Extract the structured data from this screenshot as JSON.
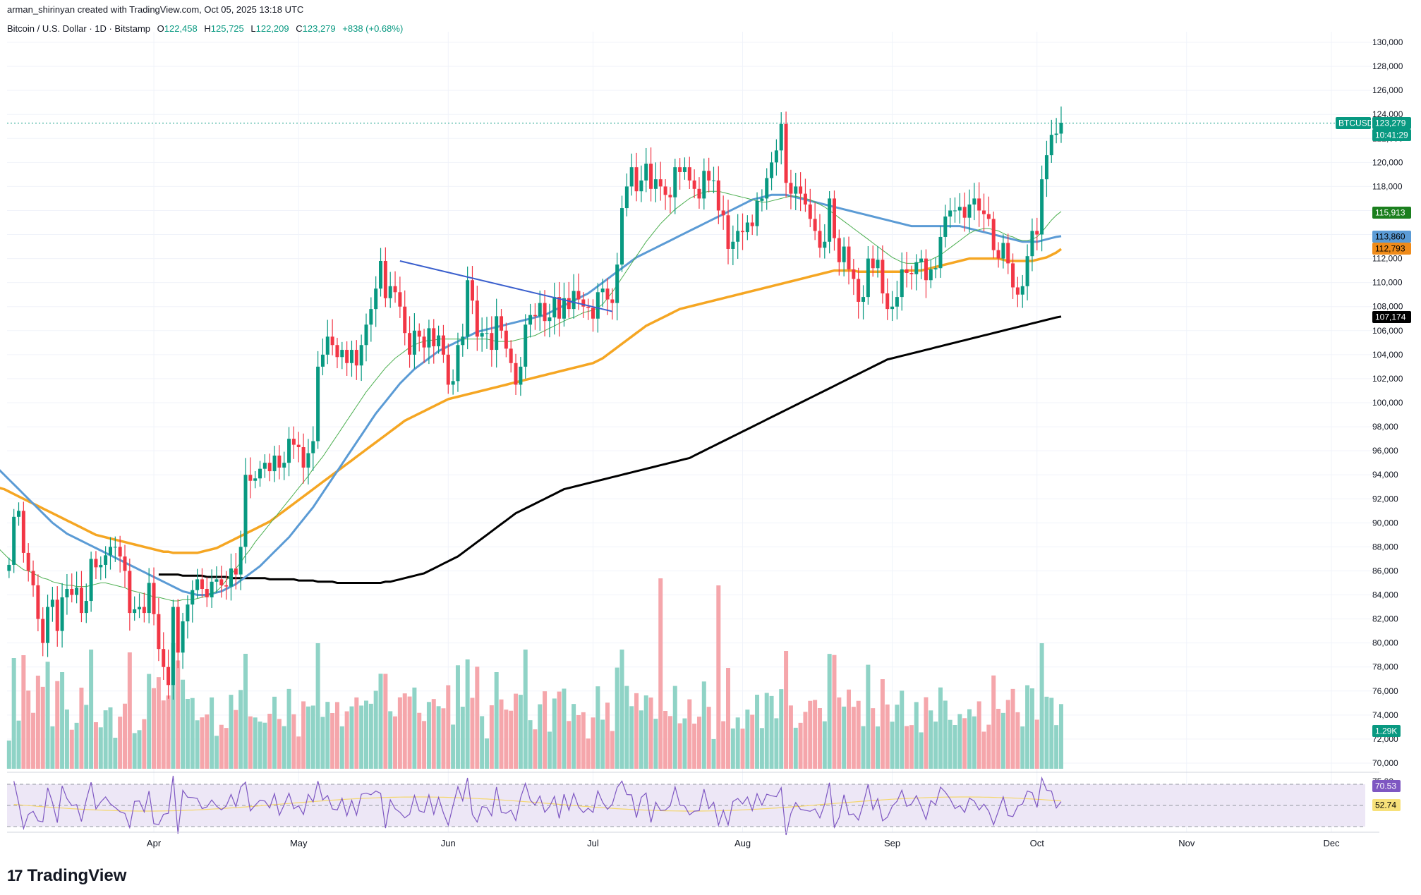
{
  "header": {
    "attribution": "arman_shirinyan created with TradingView.com, Oct 05, 2025 13:18 UTC",
    "symbol_desc": "Bitcoin / U.S. Dollar · 1D · Bitstamp",
    "open_label": "O",
    "open": "122,458",
    "high_label": "H",
    "high": "125,725",
    "low_label": "L",
    "low": "122,209",
    "close_label": "C",
    "close": "123,279",
    "change": "+838 (+0.68%)"
  },
  "brand": {
    "logo_text": "TradingView",
    "logo_icon": "tradingview-logo-icon"
  },
  "badges": {
    "symbol": "BTCUSD",
    "price": "123,279",
    "countdown": "10:41:29",
    "ma_green": "115,913",
    "ma_blue": "113,860",
    "ma_orange": "112,793",
    "ma_black": "107,174",
    "volume": "1.29K",
    "rsi": "70.53",
    "rsi_ma": "52.74",
    "rsi_top_partial": "75.00"
  },
  "colors": {
    "up": "#089981",
    "down": "#f23645",
    "ma_green": "#4caf50",
    "ma_blue": "#5b9bd5",
    "ma_orange": "#f5a623",
    "ma_black": "#000000",
    "trendline": "#3a5fcd",
    "rsi": "#7e57c2",
    "rsi_ma": "#f5d76e",
    "rsi_band": "#ede7f6"
  },
  "chart_data": {
    "type": "candlestick",
    "title": "Bitcoin / U.S. Dollar · 1D · Bitstamp",
    "xlabel": "",
    "ylabel": "",
    "ylim": [
      69000,
      131000
    ],
    "y_ticks": [
      70000,
      72000,
      74000,
      76000,
      78000,
      80000,
      82000,
      84000,
      86000,
      88000,
      90000,
      92000,
      94000,
      96000,
      98000,
      100000,
      102000,
      104000,
      106000,
      108000,
      110000,
      112000,
      114000,
      116000,
      118000,
      120000,
      122000,
      124000,
      126000,
      128000,
      130000
    ],
    "x_tick_labels": [
      "Apr",
      "May",
      "Jun",
      "Jul",
      "Aug",
      "Sep",
      "Oct",
      "Nov",
      "Dec"
    ],
    "x_range": [
      "2025-03-01",
      "2025-12-15"
    ],
    "x_tick_dates": [
      "2025-04-01",
      "2025-05-01",
      "2025-06-01",
      "2025-07-01",
      "2025-08-01",
      "2025-09-01",
      "2025-10-01",
      "2025-11-01",
      "2025-12-01"
    ],
    "start_date": "2025-03-02",
    "closes": [
      86500,
      90500,
      91000,
      87500,
      86000,
      84800,
      82000,
      80000,
      83000,
      83600,
      81000,
      83800,
      84500,
      84000,
      84600,
      82500,
      83500,
      87000,
      86300,
      86500,
      87300,
      88000,
      88000,
      87200,
      86000,
      82500,
      82800,
      83000,
      82500,
      85000,
      82400,
      79500,
      78000,
      76500,
      83000,
      79200,
      81800,
      83200,
      84400,
      85300,
      84500,
      83800,
      85100,
      85300,
      84800,
      84700,
      86200,
      85700,
      88000,
      94000,
      93500,
      93700,
      94500,
      95000,
      94300,
      95600,
      94600,
      95000,
      97000,
      96500,
      96300,
      94600,
      95800,
      96800,
      103000,
      104000,
      105500,
      104800,
      103800,
      104400,
      103300,
      104400,
      103100,
      104800,
      106500,
      107800,
      109500,
      111800,
      108700,
      109700,
      109200,
      108000,
      105800,
      104000,
      106000,
      105500,
      104600,
      106200,
      104700,
      105600,
      104000,
      101500,
      101800,
      104800,
      105500,
      110200,
      108500,
      105500,
      105800,
      105800,
      104400,
      107200,
      106000,
      104500,
      103300,
      101500,
      103000,
      106500,
      107300,
      107200,
      108300,
      106800,
      107100,
      108800,
      107000,
      108700,
      107800,
      109300,
      108600,
      108000,
      107900,
      107000,
      109200,
      109500,
      108600,
      108300,
      111500,
      116200,
      118000,
      119600,
      117600,
      118500,
      119900,
      117800,
      118600,
      118000,
      117300,
      117100,
      119600,
      119200,
      119600,
      118500,
      117800,
      117000,
      119300,
      118500,
      118500,
      116000,
      115600,
      112800,
      113400,
      114300,
      114200,
      115000,
      114700,
      116800,
      117000,
      118700,
      120000,
      121000,
      123200,
      118300,
      117400,
      118000,
      117400,
      116500,
      115300,
      114300,
      112900,
      113400,
      117000,
      113700,
      111700,
      113000,
      111100,
      110300,
      108400,
      108800,
      112000,
      111200,
      111900,
      109100,
      107800,
      108000,
      108800,
      111100,
      110800,
      110700,
      111700,
      112000,
      110200,
      111100,
      111200,
      113800,
      115500,
      116000,
      116000,
      116300,
      115400,
      116500,
      117000,
      116000,
      115700,
      115300,
      112700,
      112000,
      113300,
      111600,
      109600,
      109000,
      109700,
      112200,
      114300,
      114000,
      118600,
      120600,
      122300,
      122400,
      123300
    ],
    "ma_green": [
      88500,
      88200,
      87800,
      87400,
      87000,
      86700,
      86400,
      86100,
      86000,
      85800,
      85600,
      85400,
      85300,
      85100,
      85000,
      84900,
      84800,
      84800,
      84700,
      84700,
      84700,
      84800,
      84900,
      85000,
      85000,
      84900,
      84800,
      84700,
      84600,
      84400,
      84300,
      84200,
      84100,
      84000,
      83800,
      83800,
      83700,
      83600,
      83500,
      83500,
      83600,
      83600,
      83600,
      83700,
      83800,
      83900,
      84100,
      84300,
      84700,
      85200,
      85700,
      86200,
      86700,
      87300,
      87800,
      88400,
      88900,
      89400,
      89900,
      90400,
      90900,
      91400,
      91900,
      92400,
      92900,
      93400,
      93900,
      94500,
      95000,
      95500,
      96100,
      96700,
      97300,
      97900,
      98500,
      99100,
      99700,
      100300,
      100900,
      101400,
      101900,
      102400,
      102900,
      103300,
      103700,
      104000,
      104300,
      104600,
      104800,
      105000,
      105100,
      105200,
      105200,
      105300,
      105300,
      105300,
      105300,
      105300,
      105300,
      105300,
      105300,
      105300,
      105300,
      105300,
      105200,
      105100,
      105100,
      105100,
      105100,
      105200,
      105300,
      105400,
      105500,
      105600,
      105800,
      106000,
      106200,
      106400,
      106600,
      106800,
      107000,
      107100,
      107300,
      107500,
      107600,
      107700,
      107900,
      108200,
      108700,
      109200,
      109800,
      110400,
      111000,
      111600,
      112200,
      112800,
      113400,
      113900,
      114400,
      114900,
      115300,
      115700,
      116100,
      116400,
      116700,
      117000,
      117200,
      117400,
      117500,
      117600,
      117600,
      117600,
      117500,
      117400,
      117300,
      117200,
      117100,
      117000,
      116900,
      116800,
      116700,
      116700,
      116800,
      116900,
      117000,
      117100,
      117200,
      117200,
      117100,
      117000,
      116900,
      116700,
      116500,
      116300,
      116000,
      115700,
      115400,
      115100,
      114800,
      114500,
      114200,
      113900,
      113600,
      113300,
      113000,
      112700,
      112400,
      112100,
      111900,
      111700,
      111600,
      111600,
      111600,
      111700,
      111800,
      111900,
      112100,
      112300,
      112600,
      112900,
      113200,
      113500,
      113800,
      114100,
      114300,
      114400,
      114500,
      114500,
      114400,
      114300,
      114100,
      113900,
      113800,
      113600,
      113500,
      113500,
      113600,
      113800,
      114200,
      114700,
      115200,
      115600,
      115913
    ],
    "ma_blue": [
      95800,
      95500,
      95200,
      94800,
      94400,
      94000,
      93600,
      93200,
      92800,
      92400,
      92000,
      91600,
      91200,
      90800,
      90400,
      90000,
      89700,
      89400,
      89100,
      88900,
      88700,
      88500,
      88300,
      88100,
      87900,
      87700,
      87500,
      87300,
      87100,
      86900,
      86700,
      86500,
      86300,
      86100,
      85900,
      85700,
      85500,
      85300,
      85100,
      84900,
      84700,
      84500,
      84300,
      84200,
      84100,
      84000,
      84000,
      84000,
      84100,
      84200,
      84300,
      84500,
      84700,
      84900,
      85200,
      85500,
      85800,
      86100,
      86400,
      86800,
      87200,
      87600,
      88000,
      88400,
      88800,
      89300,
      89800,
      90300,
      90800,
      91300,
      91900,
      92500,
      93100,
      93700,
      94300,
      94900,
      95500,
      96100,
      96700,
      97300,
      97900,
      98500,
      99100,
      99600,
      100100,
      100600,
      101100,
      101600,
      102000,
      102400,
      102800,
      103100,
      103400,
      103700,
      104000,
      104300,
      104500,
      104700,
      104900,
      105100,
      105300,
      105500,
      105700,
      105900,
      106000,
      106100,
      106200,
      106300,
      106400,
      106500,
      106600,
      106700,
      106800,
      106900,
      107000,
      107100,
      107200,
      107300,
      107500,
      107700,
      107900,
      108100,
      108300,
      108500,
      108700,
      108900,
      109100,
      109400,
      109700,
      110000,
      110300,
      110600,
      110900,
      111200,
      111500,
      111800,
      112100,
      112300,
      112500,
      112700,
      112900,
      113100,
      113300,
      113500,
      113700,
      113900,
      114100,
      114300,
      114500,
      114700,
      114900,
      115100,
      115300,
      115500,
      115700,
      115900,
      116100,
      116300,
      116500,
      116700,
      116900,
      117000,
      117100,
      117200,
      117300,
      117300,
      117300,
      117300,
      117200,
      117100,
      117000,
      116900,
      116800,
      116700,
      116600,
      116500,
      116400,
      116300,
      116200,
      116100,
      116000,
      115900,
      115800,
      115700,
      115600,
      115500,
      115400,
      115300,
      115200,
      115100,
      115000,
      114900,
      114800,
      114700,
      114700,
      114700,
      114700,
      114700,
      114700,
      114700,
      114700,
      114700,
      114700,
      114700,
      114600,
      114500,
      114400,
      114300,
      114200,
      114100,
      114000,
      113900,
      113800,
      113700,
      113600,
      113500,
      113400,
      113400,
      113400,
      113400,
      113500,
      113600,
      113700,
      113800,
      113860
    ],
    "ma_orange": [
      93000,
      92900,
      92800,
      92600,
      92400,
      92200,
      92000,
      91800,
      91600,
      91400,
      91200,
      91000,
      90800,
      90600,
      90400,
      90200,
      90000,
      89800,
      89600,
      89400,
      89200,
      89000,
      88900,
      88800,
      88700,
      88600,
      88500,
      88400,
      88300,
      88200,
      88100,
      88000,
      87900,
      87800,
      87700,
      87600,
      87600,
      87500,
      87500,
      87500,
      87500,
      87500,
      87500,
      87600,
      87700,
      87800,
      87900,
      88100,
      88300,
      88500,
      88700,
      88900,
      89100,
      89300,
      89500,
      89700,
      89900,
      90100,
      90400,
      90700,
      91000,
      91300,
      91600,
      91900,
      92200,
      92500,
      92800,
      93100,
      93400,
      93700,
      94000,
      94300,
      94600,
      94900,
      95200,
      95500,
      95800,
      96100,
      96400,
      96700,
      97000,
      97300,
      97600,
      97900,
      98200,
      98500,
      98700,
      98900,
      99100,
      99300,
      99500,
      99700,
      99900,
      100100,
      100300,
      100400,
      100500,
      100600,
      100700,
      100800,
      100900,
      101000,
      101100,
      101200,
      101300,
      101400,
      101500,
      101600,
      101700,
      101800,
      101900,
      102000,
      102100,
      102200,
      102300,
      102400,
      102500,
      102600,
      102700,
      102800,
      102900,
      103000,
      103100,
      103200,
      103300,
      103500,
      103700,
      104000,
      104300,
      104600,
      104900,
      105200,
      105500,
      105800,
      106100,
      106400,
      106600,
      106800,
      107000,
      107200,
      107400,
      107600,
      107800,
      107900,
      108000,
      108100,
      108200,
      108300,
      108400,
      108500,
      108600,
      108700,
      108800,
      108900,
      109000,
      109100,
      109200,
      109300,
      109400,
      109500,
      109600,
      109700,
      109800,
      109900,
      110000,
      110100,
      110200,
      110300,
      110400,
      110500,
      110600,
      110700,
      110800,
      110900,
      111000,
      111000,
      111000,
      111000,
      111000,
      110900,
      110900,
      110900,
      110900,
      110900,
      110900,
      110900,
      110900,
      110900,
      110900,
      111000,
      111000,
      111000,
      111000,
      111100,
      111200,
      111300,
      111400,
      111500,
      111600,
      111700,
      111800,
      111900,
      112000,
      112000,
      112000,
      112000,
      112000,
      112000,
      112000,
      111900,
      111800,
      111800,
      111800,
      111800,
      111800,
      111800,
      111900,
      112000,
      112100,
      112300,
      112500,
      112793
    ],
    "ma_black": [
      85700,
      85700,
      85700,
      85700,
      85700,
      85600,
      85600,
      85600,
      85600,
      85600,
      85500,
      85500,
      85500,
      85500,
      85500,
      85400,
      85400,
      85400,
      85400,
      85400,
      85400,
      85400,
      85400,
      85300,
      85300,
      85300,
      85300,
      85300,
      85300,
      85200,
      85200,
      85200,
      85200,
      85100,
      85100,
      85100,
      85100,
      85000,
      85000,
      85000,
      85000,
      85000,
      85000,
      85000,
      85000,
      85000,
      85000,
      85100,
      85100,
      85200,
      85300,
      85400,
      85500,
      85600,
      85700,
      85800,
      86000,
      86200,
      86400,
      86600,
      86800,
      87000,
      87200,
      87500,
      87800,
      88100,
      88400,
      88700,
      89000,
      89300,
      89600,
      89900,
      90200,
      90500,
      90800,
      91000,
      91200,
      91400,
      91600,
      91800,
      92000,
      92200,
      92400,
      92600,
      92800,
      92900,
      93000,
      93100,
      93200,
      93300,
      93400,
      93500,
      93600,
      93700,
      93800,
      93900,
      94000,
      94100,
      94200,
      94300,
      94400,
      94500,
      94600,
      94700,
      94800,
      94900,
      95000,
      95100,
      95200,
      95300,
      95400,
      95600,
      95800,
      96000,
      96200,
      96400,
      96600,
      96800,
      97000,
      97200,
      97400,
      97600,
      97800,
      98000,
      98200,
      98400,
      98600,
      98800,
      99000,
      99200,
      99400,
      99600,
      99800,
      100000,
      100200,
      100400,
      100600,
      100800,
      101000,
      101200,
      101400,
      101600,
      101800,
      102000,
      102200,
      102400,
      102600,
      102800,
      103000,
      103200,
      103400,
      103600,
      103700,
      103800,
      103900,
      104000,
      104100,
      104200,
      104300,
      104400,
      104500,
      104600,
      104700,
      104800,
      104900,
      105000,
      105100,
      105200,
      105300,
      105400,
      105500,
      105600,
      105700,
      105800,
      105900,
      106000,
      106100,
      106200,
      106300,
      106400,
      106500,
      106600,
      106700,
      106800,
      106900,
      107000,
      107100,
      107174
    ],
    "trendline": {
      "from": [
        "2025-05-22",
        111800
      ],
      "to": [
        "2025-07-05",
        107600
      ]
    }
  }
}
